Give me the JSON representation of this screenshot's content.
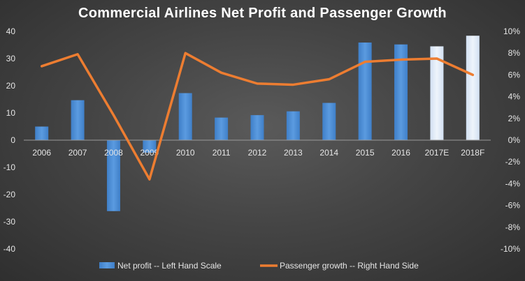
{
  "chart_data": {
    "type": "bar",
    "title": "Commercial Airlines Net Profit and Passenger Growth",
    "categories": [
      "2006",
      "2007",
      "2008",
      "2009",
      "2010",
      "2011",
      "2012",
      "2013",
      "2014",
      "2015",
      "2016",
      "2017E",
      "2018F"
    ],
    "series": [
      {
        "name": "Net profit -- Left Hand Scale",
        "type": "bar",
        "axis": "left",
        "values": [
          5,
          14.7,
          -26.1,
          -4.6,
          17.3,
          8.3,
          9.2,
          10.6,
          13.7,
          35.9,
          35.2,
          34.5,
          38.4
        ],
        "colors": [
          "#4f8fd6",
          "#4f8fd6",
          "#4f8fd6",
          "#4f8fd6",
          "#4f8fd6",
          "#4f8fd6",
          "#4f8fd6",
          "#4f8fd6",
          "#4f8fd6",
          "#4f8fd6",
          "#4f8fd6",
          "#dde8f5",
          "#dde8f5"
        ]
      },
      {
        "name": "Passenger growth  -- Right Hand Side",
        "type": "line",
        "axis": "right",
        "values": [
          6.8,
          7.9,
          2.3,
          -3.6,
          8.0,
          6.2,
          5.2,
          5.1,
          5.6,
          7.2,
          7.4,
          7.5,
          6.0
        ],
        "color": "#ed7d31"
      }
    ],
    "left_axis": {
      "ylim": [
        -40,
        40
      ],
      "ticks": [
        "40",
        "30",
        "20",
        "10",
        "0",
        "-10",
        "-20",
        "-30",
        "-40"
      ]
    },
    "right_axis": {
      "ylim": [
        -10,
        10
      ],
      "ticks": [
        "10%",
        "8%",
        "6%",
        "4%",
        "2%",
        "0%",
        "-2%",
        "-4%",
        "-6%",
        "-8%",
        "-10%"
      ]
    },
    "grid": false,
    "legend_position": "bottom"
  }
}
